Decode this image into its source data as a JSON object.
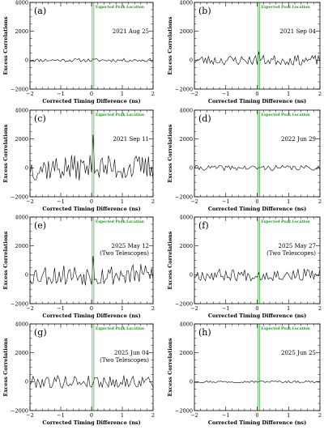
{
  "figure": {
    "peak_color": "#1a9a1a",
    "line_color": "#000000"
  },
  "chart_data": [
    {
      "type": "line",
      "panel": "(a)",
      "date": "2021 Aug 25",
      "note": "",
      "peak_label": "Expected Peak Location",
      "xlabel": "Corrected Timing Difference (ns)",
      "ylabel": "Excess Correlations",
      "xlim": [
        -2,
        2
      ],
      "ylim": [
        -2000,
        4000
      ],
      "xticks": [
        -2,
        -1,
        0,
        1,
        2
      ],
      "yticks": [
        -2000,
        0,
        2000,
        4000
      ],
      "peak_x": 0.05,
      "amplitude": 120,
      "seed": 11,
      "spike": 0
    },
    {
      "type": "line",
      "panel": "(b)",
      "date": "2021 Sep 04",
      "note": "",
      "peak_label": "Expected Peak Location",
      "xlabel": "Corrected Timing Difference (ns)",
      "ylabel": "Excess Correlations",
      "xlim": [
        -2,
        2
      ],
      "ylim": [
        -2000,
        4000
      ],
      "xticks": [
        -2,
        -1,
        0,
        1,
        2
      ],
      "yticks": [
        -2000,
        0,
        2000,
        4000
      ],
      "peak_x": 0.05,
      "amplitude": 350,
      "seed": 23,
      "spike": 600
    },
    {
      "type": "line",
      "panel": "(c)",
      "date": "2021 Sep 11",
      "note": "",
      "peak_label": "Expected Peak Location",
      "xlabel": "Corrected Timing Difference (ns)",
      "ylabel": "Excess Correlations",
      "xlim": [
        -2,
        2
      ],
      "ylim": [
        -2000,
        4000
      ],
      "xticks": [
        -2,
        -1,
        0,
        1,
        2
      ],
      "yticks": [
        -2000,
        0,
        2000,
        4000
      ],
      "peak_x": 0.05,
      "amplitude": 900,
      "seed": 37,
      "spike": 2300
    },
    {
      "type": "line",
      "panel": "(d)",
      "date": "2022 Jun 29",
      "note": "",
      "peak_label": "Expected Peak Location",
      "xlabel": "Corrected Timing Difference (ns)",
      "ylabel": "Excess Correlations",
      "xlim": [
        -2,
        2
      ],
      "ylim": [
        -2000,
        4000
      ],
      "xticks": [
        -2,
        -1,
        0,
        1,
        2
      ],
      "yticks": [
        -2000,
        0,
        2000,
        4000
      ],
      "peak_x": 0.05,
      "amplitude": 180,
      "seed": 41,
      "spike": 0
    },
    {
      "type": "line",
      "panel": "(e)",
      "date": "2025 May 12",
      "note": "(Two Telescopes)",
      "peak_label": "Expected Peak Location",
      "xlabel": "Corrected Timing Difference (ns)",
      "ylabel": "Excess Correlations",
      "xlim": [
        -2,
        2
      ],
      "ylim": [
        -2000,
        4000
      ],
      "xticks": [
        -2,
        -1,
        0,
        1,
        2
      ],
      "yticks": [
        -2000,
        0,
        2000,
        4000
      ],
      "peak_x": 0.05,
      "amplitude": 750,
      "seed": 53,
      "spike": 1300
    },
    {
      "type": "line",
      "panel": "(f)",
      "date": "2025 May 27",
      "note": "(Two Telescopes)",
      "peak_label": "Expected Peak Location",
      "xlabel": "Corrected Timing Difference (ns)",
      "ylabel": "Excess Correlations",
      "xlim": [
        -2,
        2
      ],
      "ylim": [
        -2000,
        4000
      ],
      "xticks": [
        -2,
        -1,
        0,
        1,
        2
      ],
      "yticks": [
        -2000,
        0,
        2000,
        4000
      ],
      "peak_x": 0.05,
      "amplitude": 420,
      "seed": 67,
      "spike": 0
    },
    {
      "type": "line",
      "panel": "(g)",
      "date": "2025 Jun 04",
      "note": "(Two Telescopes)",
      "peak_label": "Expected Peak Location",
      "xlabel": "Corrected Timing Difference (ns)",
      "ylabel": "Excess Correlations",
      "xlim": [
        -2,
        2
      ],
      "ylim": [
        -2000,
        4000
      ],
      "xticks": [
        -2,
        -1,
        0,
        1,
        2
      ],
      "yticks": [
        -2000,
        0,
        2000,
        4000
      ],
      "peak_x": 0.05,
      "amplitude": 450,
      "seed": 79,
      "spike": 0
    },
    {
      "type": "line",
      "panel": "(h)",
      "date": "2025 Jun 25",
      "note": "",
      "peak_label": "Expected Peak Location",
      "xlabel": "Corrected Timing Difference (ns)",
      "ylabel": "Excess Correlations",
      "xlim": [
        -2,
        2
      ],
      "ylim": [
        -2000,
        4000
      ],
      "xticks": [
        -2,
        -1,
        0,
        1,
        2
      ],
      "yticks": [
        -2000,
        0,
        2000,
        4000
      ],
      "peak_x": 0.05,
      "amplitude": 80,
      "seed": 97,
      "spike": 0
    }
  ]
}
